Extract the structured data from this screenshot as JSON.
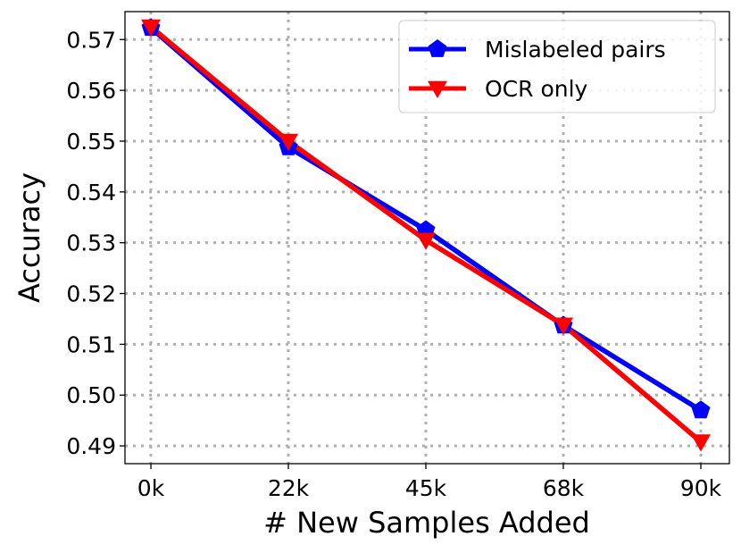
{
  "chart_data": {
    "type": "line",
    "xlabel": "# New Samples Added",
    "ylabel": "Accuracy",
    "categories": [
      "0k",
      "22k",
      "45k",
      "68k",
      "90k"
    ],
    "yticks": [
      "0.49",
      "0.50",
      "0.51",
      "0.52",
      "0.53",
      "0.54",
      "0.55",
      "0.56",
      "0.57"
    ],
    "ylim": [
      0.4865,
      0.5755
    ],
    "grid": true,
    "legend_position": "top-right",
    "series": [
      {
        "name": "Mislabeled pairs",
        "color": "#0000ff",
        "marker": "pentagon",
        "values": [
          0.5723,
          0.5488,
          0.5325,
          0.5137,
          0.497
        ]
      },
      {
        "name": "OCR only",
        "color": "#ff0000",
        "marker": "triangle-down",
        "values": [
          0.5725,
          0.55,
          0.5305,
          0.5138,
          0.4908
        ]
      }
    ]
  }
}
